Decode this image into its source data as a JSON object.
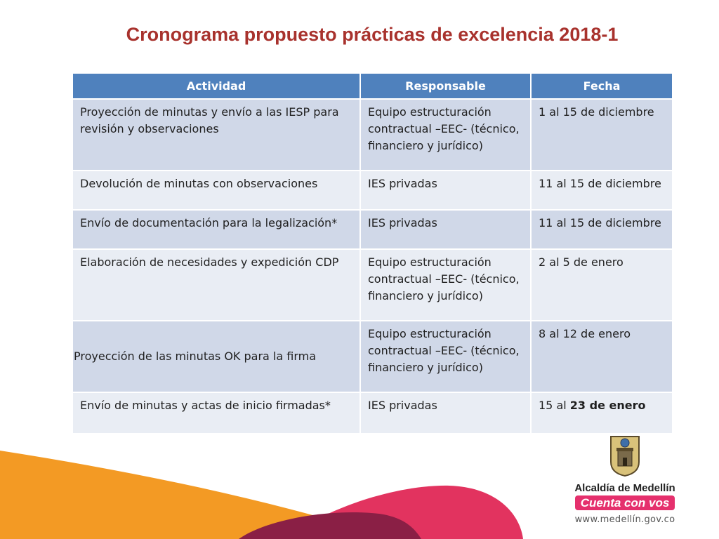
{
  "slide": {
    "title": "Cronograma propuesto prácticas de excelencia 2018-1"
  },
  "table": {
    "headers": [
      "Actividad",
      "Responsable",
      "Fecha"
    ],
    "rows": [
      {
        "actividad": "Proyección de minutas y envío a las IESP para revisión y observaciones",
        "responsable": "Equipo estructuración contractual –EEC- (técnico, financiero y jurídico)",
        "fecha": "1 al 15 de diciembre"
      },
      {
        "actividad": "Devolución de minutas con observaciones",
        "responsable": "IES privadas",
        "fecha": "11 al 15 de diciembre"
      },
      {
        "actividad": "Envío de documentación para la legalización*",
        "responsable": "IES privadas",
        "fecha": "11 al 15 de diciembre"
      },
      {
        "actividad": "Elaboración de necesidades y expedición CDP",
        "responsable": "Equipo estructuración contractual –EEC- (técnico, financiero y jurídico)",
        "fecha": "2 al 5 de enero"
      },
      {
        "actividad": "Proyección de las minutas OK para la firma",
        "responsable": "Equipo estructuración contractual –EEC- (técnico, financiero y jurídico)",
        "fecha": "8 al 12 de enero"
      },
      {
        "actividad": "Envío de minutas y actas de inicio firmadas*",
        "responsable": "IES privadas",
        "fecha_prefix": "15 al ",
        "fecha_bold": "23 de enero"
      }
    ]
  },
  "branding": {
    "org_name": "Alcaldía de Medellín",
    "slogan": "Cuenta con vos",
    "website": "www.medellín.gov.co",
    "colors": {
      "orange": "#f39a24",
      "pink": "#e2335f",
      "maroon": "#8a1f45",
      "header_blue": "#4f81bd"
    }
  }
}
